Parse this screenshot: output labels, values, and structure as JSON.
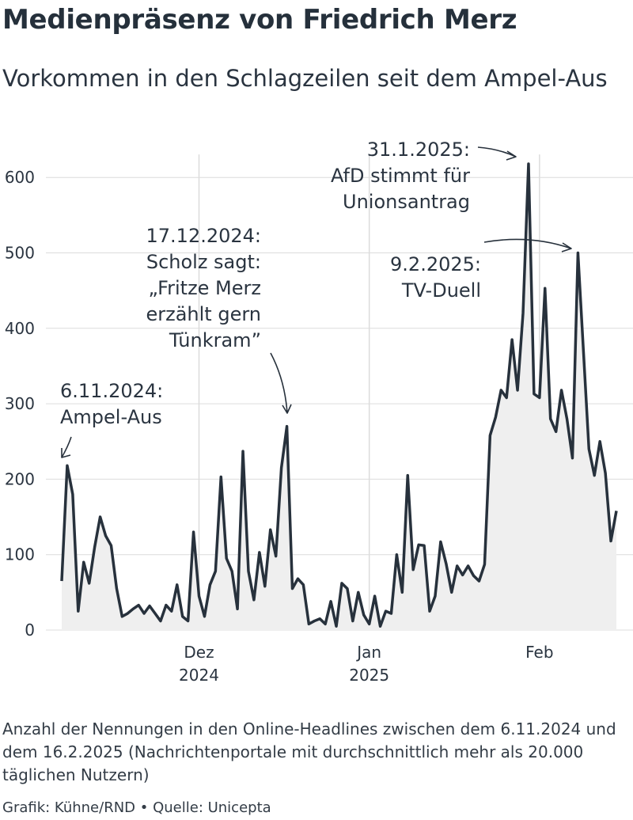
{
  "title": "Medienpräsenz von Friedrich Merz",
  "subtitle": "Vorkommen in den Schlagzeilen seit dem Ampel-Aus",
  "note": "Anzahl der Nennungen in den Online-Headlines zwischen dem 6.11.2024 und dem 16.2.2025 (Nachrichtenportale mit durchschnittlich mehr als 20.000 täglichen Nutzern)",
  "credits": "Grafik: Kühne/RND • Quelle: Unicepta",
  "colors": {
    "line": "#27313c",
    "area": "#efefef",
    "grid": "#dcdcdc",
    "text": "#2a3440"
  },
  "chart_data": {
    "type": "area",
    "x_start": "2024-11-06",
    "x_end": "2025-02-16",
    "ylim": [
      0,
      620
    ],
    "yticks": [
      0,
      100,
      200,
      300,
      400,
      500,
      600
    ],
    "x_ticks": [
      {
        "date": "2024-12-01",
        "label": "Dez",
        "sublabel": "2024"
      },
      {
        "date": "2025-01-01",
        "label": "Jan",
        "sublabel": "2025"
      },
      {
        "date": "2025-02-01",
        "label": "Feb",
        "sublabel": ""
      }
    ],
    "grid": true,
    "values": [
      65,
      218,
      180,
      25,
      90,
      62,
      110,
      150,
      125,
      112,
      55,
      18,
      22,
      28,
      33,
      22,
      32,
      22,
      12,
      33,
      25,
      60,
      18,
      12,
      130,
      45,
      18,
      60,
      78,
      203,
      95,
      78,
      28,
      237,
      78,
      40,
      103,
      58,
      133,
      98,
      215,
      270,
      55,
      68,
      60,
      8,
      12,
      15,
      8,
      38,
      5,
      62,
      55,
      12,
      50,
      20,
      8,
      45,
      5,
      25,
      22,
      100,
      50,
      205,
      80,
      113,
      112,
      25,
      45,
      117,
      88,
      50,
      85,
      73,
      85,
      72,
      65,
      87,
      258,
      282,
      318,
      308,
      385,
      318,
      420,
      618,
      313,
      308,
      453,
      280,
      263,
      318,
      280,
      228,
      500,
      370,
      240,
      205,
      250,
      208,
      118,
      158
    ],
    "annotations": [
      {
        "date": "2024-11-07",
        "value": 218,
        "lines": [
          "6.11.2024:",
          "Ampel-Aus"
        ]
      },
      {
        "date": "2024-12-17",
        "value": 270,
        "lines": [
          "17.12.2024:",
          "Scholz sagt:",
          "„Fritze Merz",
          "erzählt gern",
          "Tünkram”"
        ]
      },
      {
        "date": "2025-01-31",
        "value": 618,
        "lines": [
          "31.1.2025:",
          "AfD stimmt für",
          "Unionsantrag"
        ]
      },
      {
        "date": "2025-02-09",
        "value": 500,
        "lines": [
          "9.2.2025:",
          "TV-Duell"
        ]
      }
    ]
  }
}
